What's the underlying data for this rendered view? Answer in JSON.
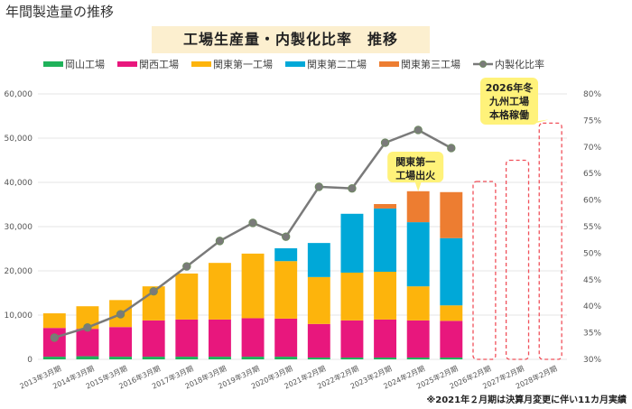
{
  "page": {
    "title": "年間製造量の推移"
  },
  "chart_data": {
    "type": "bar",
    "stacked": true,
    "title": "工場生産量・内製化比率　推移",
    "categories": [
      "2013年3月期",
      "2014年3月期",
      "2015年3月期",
      "2016年3月期",
      "2017年3月期",
      "2018年3月期",
      "2019年3月期",
      "2020年3月期",
      "2021年2月期",
      "2022年2月期",
      "2023年2月期",
      "2024年2月期",
      "2025年2月期",
      "2026年2月期",
      "2027年2月期",
      "2028年2月期"
    ],
    "series": [
      {
        "name": "岡山工場",
        "color": "#1fb25a",
        "type": "bar",
        "values": [
          600,
          700,
          600,
          600,
          600,
          600,
          600,
          600,
          400,
          400,
          400,
          400,
          400,
          null,
          null,
          null
        ]
      },
      {
        "name": "関西工場",
        "color": "#e8177d",
        "type": "bar",
        "values": [
          6500,
          6200,
          6700,
          8200,
          8400,
          8400,
          8700,
          8600,
          7600,
          8400,
          8600,
          8400,
          8300,
          null,
          null,
          null
        ]
      },
      {
        "name": "関東第一工場",
        "color": "#fdb40c",
        "type": "bar",
        "values": [
          3300,
          5100,
          6100,
          7700,
          10400,
          12800,
          14600,
          13000,
          10600,
          10800,
          10800,
          7700,
          3500,
          null,
          null,
          null
        ]
      },
      {
        "name": "関東第二工場",
        "color": "#00a8d8",
        "type": "bar",
        "values": [
          0,
          0,
          0,
          0,
          0,
          0,
          0,
          2900,
          7700,
          13300,
          14300,
          14500,
          15200,
          null,
          null,
          null
        ]
      },
      {
        "name": "関東第三工場",
        "color": "#ed7d31",
        "type": "bar",
        "values": [
          0,
          0,
          0,
          0,
          0,
          0,
          0,
          0,
          0,
          0,
          1000,
          7000,
          10400,
          null,
          null,
          null
        ]
      },
      {
        "name": "内製化比率",
        "color": "#7a7a7a",
        "marker_color": "#6f8a62",
        "type": "line",
        "axis": "right",
        "unit": "%",
        "values": [
          34.1,
          36.0,
          38.5,
          42.8,
          47.5,
          52.3,
          55.7,
          53.1,
          62.5,
          62.2,
          70.8,
          73.2,
          69.8,
          null,
          null,
          null
        ]
      }
    ],
    "forecast_placeholders": [
      {
        "category": "2026年2月期",
        "level_pct": 63.5
      },
      {
        "category": "2027年2月期",
        "level_pct": 67.5
      },
      {
        "category": "2028年2月期",
        "level_pct": 74.5
      }
    ],
    "ylim_left": [
      0,
      60000
    ],
    "yticks_left": [
      "0",
      "10,000",
      "20,000",
      "30,000",
      "40,000",
      "50,000",
      "60,000"
    ],
    "ylim_right": [
      30,
      80
    ],
    "yticks_right": [
      "30%",
      "35%",
      "40%",
      "45%",
      "50%",
      "55%",
      "60%",
      "65%",
      "70%",
      "75%",
      "80%"
    ],
    "xlabel": "",
    "ylabel": "",
    "grid": true,
    "legend_position": "top",
    "annotations": [
      {
        "target": "2024年2月期",
        "lines": [
          "関東第一",
          "工場出火"
        ]
      },
      {
        "target": "2028年2月期",
        "lines": [
          "2026年冬",
          "九州工場",
          "本格稼働"
        ]
      }
    ],
    "footnote": "※2021年２月期は決算月変更に伴い11カ月実績"
  }
}
